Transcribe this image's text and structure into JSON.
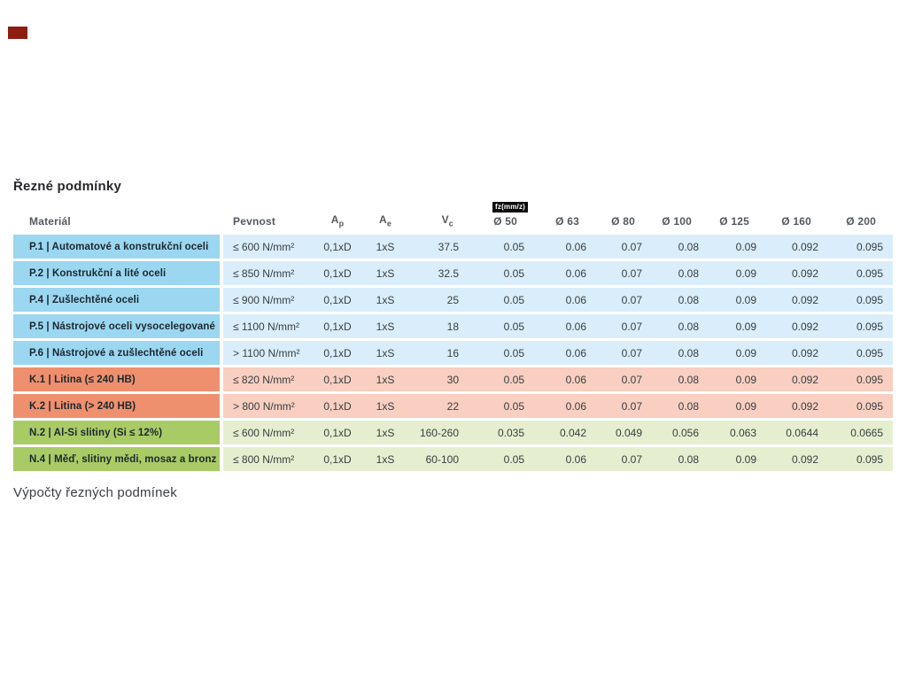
{
  "page": {
    "title": "Řezné podmínky",
    "footer_heading": "Výpočty řezných podmínek"
  },
  "table": {
    "badge": "fz(mm/z)",
    "headers": {
      "material": "Materiál",
      "pevnost": "Pevnost",
      "ap": {
        "main": "A",
        "sub": "p"
      },
      "ae": {
        "main": "A",
        "sub": "e"
      },
      "vc": {
        "main": "V",
        "sub": "c"
      },
      "diameters": [
        "Ø 50",
        "Ø 63",
        "Ø 80",
        "Ø 100",
        "Ø 125",
        "Ø 160",
        "Ø 200"
      ]
    },
    "rows": [
      {
        "group": "p",
        "material": "P.1 | Automatové a konstrukční oceli",
        "pevnost": "≤ 600 N/mm²",
        "ap": "0,1xD",
        "ae": "1xS",
        "vc": "37.5",
        "fz": [
          "0.05",
          "0.06",
          "0.07",
          "0.08",
          "0.09",
          "0.092",
          "0.095"
        ]
      },
      {
        "group": "p",
        "material": "P.2 | Konstrukční a lité oceli",
        "pevnost": "≤ 850 N/mm²",
        "ap": "0,1xD",
        "ae": "1xS",
        "vc": "32.5",
        "fz": [
          "0.05",
          "0.06",
          "0.07",
          "0.08",
          "0.09",
          "0.092",
          "0.095"
        ]
      },
      {
        "group": "p",
        "material": "P.4 | Zušlechtěné oceli",
        "pevnost": "≤ 900 N/mm²",
        "ap": "0,1xD",
        "ae": "1xS",
        "vc": "25",
        "fz": [
          "0.05",
          "0.06",
          "0.07",
          "0.08",
          "0.09",
          "0.092",
          "0.095"
        ]
      },
      {
        "group": "p",
        "material": "P.5 | Nástrojové oceli vysocelegované",
        "pevnost": "≤ 1100 N/mm²",
        "ap": "0,1xD",
        "ae": "1xS",
        "vc": "18",
        "fz": [
          "0.05",
          "0.06",
          "0.07",
          "0.08",
          "0.09",
          "0.092",
          "0.095"
        ]
      },
      {
        "group": "p",
        "material": "P.6 | Nástrojové a zušlechtěné oceli",
        "pevnost": "> 1100 N/mm²",
        "ap": "0,1xD",
        "ae": "1xS",
        "vc": "16",
        "fz": [
          "0.05",
          "0.06",
          "0.07",
          "0.08",
          "0.09",
          "0.092",
          "0.095"
        ]
      },
      {
        "group": "k",
        "material": "K.1 | Litina (≤ 240 HB)",
        "pevnost": "≤ 820 N/mm²",
        "ap": "0,1xD",
        "ae": "1xS",
        "vc": "30",
        "fz": [
          "0.05",
          "0.06",
          "0.07",
          "0.08",
          "0.09",
          "0.092",
          "0.095"
        ]
      },
      {
        "group": "k",
        "material": "K.2 | Litina (> 240 HB)",
        "pevnost": "> 800 N/mm²",
        "ap": "0,1xD",
        "ae": "1xS",
        "vc": "22",
        "fz": [
          "0.05",
          "0.06",
          "0.07",
          "0.08",
          "0.09",
          "0.092",
          "0.095"
        ]
      },
      {
        "group": "n",
        "material": "N.2 | Al-Si slitiny (Si ≤ 12%)",
        "pevnost": "≤ 600 N/mm²",
        "ap": "0,1xD",
        "ae": "1xS",
        "vc": "160-260",
        "fz": [
          "0.035",
          "0.042",
          "0.049",
          "0.056",
          "0.063",
          "0.0644",
          "0.0665"
        ]
      },
      {
        "group": "n",
        "material": "N.4 | Měď, slitiny mědi, mosaz a bronz",
        "pevnost": "≤ 800 N/mm²",
        "ap": "0,1xD",
        "ae": "1xS",
        "vc": "60-100",
        "fz": [
          "0.05",
          "0.06",
          "0.07",
          "0.08",
          "0.09",
          "0.092",
          "0.095"
        ]
      }
    ]
  },
  "colors": {
    "top_left_mark": "#8e1d10",
    "p_material_bg": "#9bd7f0",
    "p_row_bg": "#d9eefa",
    "k_material_bg": "#ee8f6d",
    "k_row_bg": "#f8cfc0",
    "n_material_bg": "#a9cb66",
    "n_row_bg": "#e5efcf",
    "badge_bg": "#0b0b0b",
    "badge_text": "#ffffff"
  }
}
